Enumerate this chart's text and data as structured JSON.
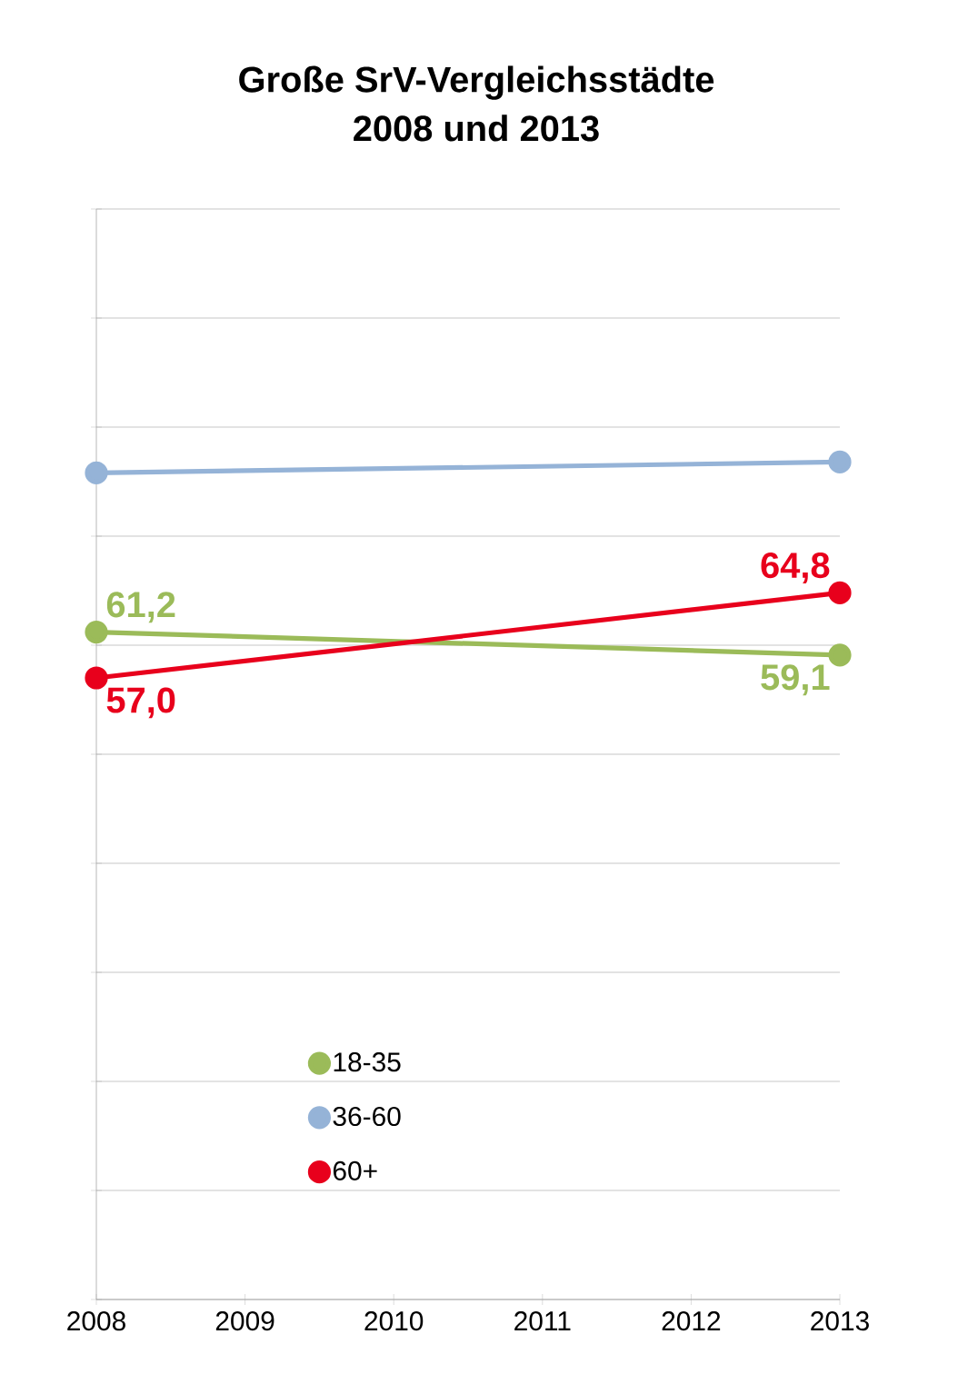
{
  "chart_data": {
    "type": "line",
    "title": "Große SrV-Vergleichsstädte\n2008 und 2013",
    "x": [
      2008,
      2013
    ],
    "xlim": [
      2008,
      2013
    ],
    "xticks": [
      2008,
      2009,
      2010,
      2011,
      2012,
      2013
    ],
    "ylim": [
      0,
      100
    ],
    "yticks": [
      {
        "value": 0,
        "label": null
      },
      {
        "value": 10,
        "label": null
      },
      {
        "value": 20,
        "label": null
      },
      {
        "value": 30,
        "label": null
      },
      {
        "value": 40,
        "label": null
      },
      {
        "value": 50,
        "label": null
      },
      {
        "value": 60,
        "label": null
      },
      {
        "value": 70,
        "label": null
      },
      {
        "value": 80,
        "label": null
      },
      {
        "value": 90,
        "label": null
      },
      {
        "value": 100,
        "label": null
      }
    ],
    "tick_labels": "x",
    "grid": "y",
    "legend": "bottom",
    "marker": "circle",
    "line_style": "solid",
    "series": [
      {
        "name": "18-35",
        "color": "#9bbb59",
        "values": [
          61.2,
          59.1
        ],
        "value_labels": [
          "61,2",
          "59,1"
        ]
      },
      {
        "name": "36-60",
        "color": "#95b3d7",
        "values": [
          75.8,
          76.8
        ]
      },
      {
        "name": "60+",
        "color": "#e8001c",
        "values": [
          57.0,
          64.8
        ],
        "value_labels": [
          "57,0",
          "64,8"
        ]
      }
    ]
  }
}
